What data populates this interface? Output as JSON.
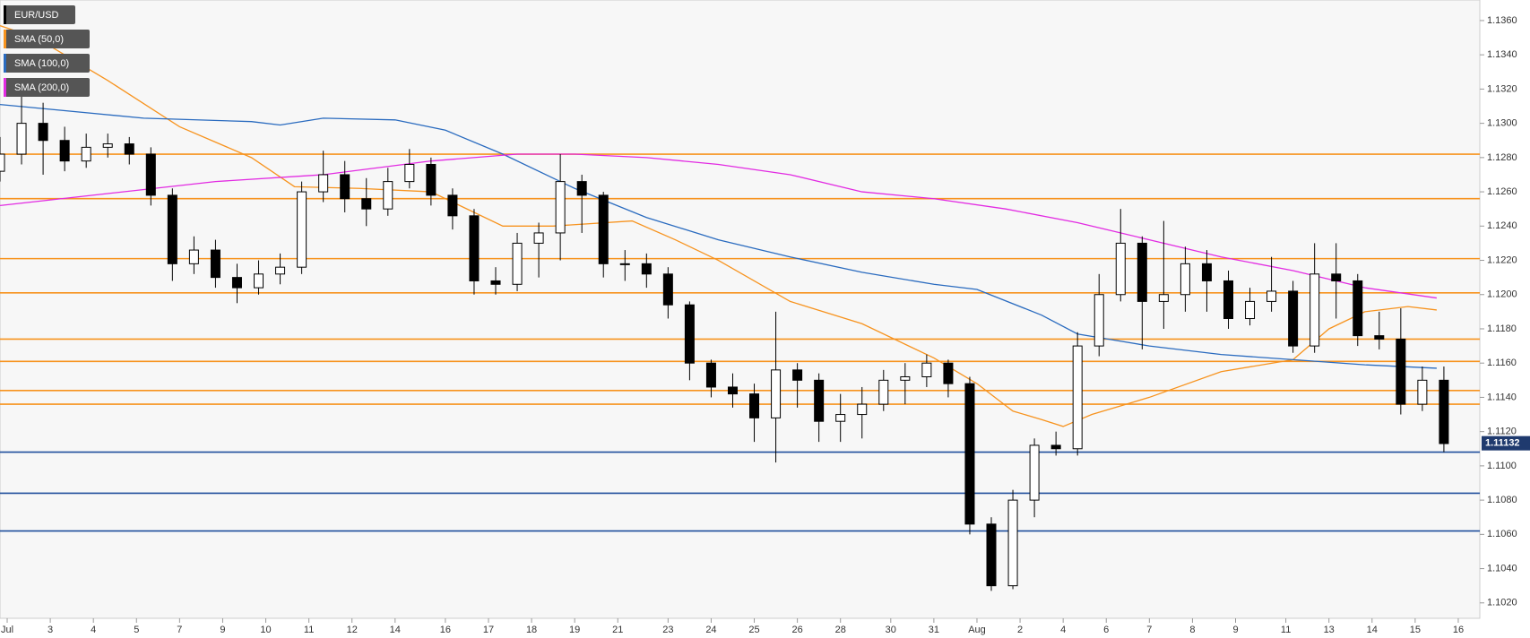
{
  "chart_data": {
    "type": "candlestick",
    "series": [
      {
        "name": "EUR/USD",
        "color": "#000000",
        "x": [
          0,
          3,
          6,
          9,
          12,
          15,
          18,
          21,
          24,
          27,
          30,
          33,
          36,
          39,
          42,
          45,
          48,
          51,
          54,
          57,
          60,
          63,
          66,
          69,
          72,
          75,
          78,
          81,
          84,
          87,
          90,
          93,
          96,
          99,
          102,
          105,
          108,
          111,
          114,
          117,
          120,
          123,
          126,
          129,
          132,
          135,
          138,
          141,
          144,
          147,
          150,
          153,
          156,
          159,
          162,
          165,
          168,
          171,
          174,
          177,
          180,
          183,
          186,
          189,
          192,
          195,
          198,
          201
        ],
        "open": [
          1.1272,
          1.1282,
          1.13,
          1.129,
          1.1278,
          1.1286,
          1.1288,
          1.1282,
          1.1258,
          1.1218,
          1.1226,
          1.121,
          1.1204,
          1.1212,
          1.1216,
          1.126,
          1.127,
          1.1256,
          1.125,
          1.1266,
          1.1276,
          1.1258,
          1.1246,
          1.1208,
          1.1206,
          1.123,
          1.1236,
          1.1266,
          1.1258,
          1.1218,
          1.1218,
          1.1212,
          1.1194,
          1.116,
          1.1146,
          1.1142,
          1.1128,
          1.1156,
          1.115,
          1.1126,
          1.113,
          1.1136,
          1.115,
          1.1152,
          1.116,
          1.1148,
          1.1066,
          1.103,
          1.108,
          1.1112,
          1.111,
          1.117,
          1.12,
          1.123,
          1.1196,
          1.12,
          1.1218,
          1.1208,
          1.1186,
          1.1196,
          1.1202,
          1.117,
          1.1212,
          1.1208,
          1.1176,
          1.1174,
          1.1136,
          1.115
        ],
        "high": [
          1.1292,
          1.132,
          1.1312,
          1.1298,
          1.1294,
          1.1294,
          1.1292,
          1.1286,
          1.1262,
          1.1234,
          1.1232,
          1.1218,
          1.122,
          1.1224,
          1.1266,
          1.1284,
          1.1278,
          1.1268,
          1.1274,
          1.1285,
          1.128,
          1.1262,
          1.125,
          1.1216,
          1.1236,
          1.1242,
          1.1282,
          1.127,
          1.126,
          1.1226,
          1.1224,
          1.1216,
          1.1196,
          1.1162,
          1.1154,
          1.1148,
          1.119,
          1.116,
          1.1154,
          1.1142,
          1.1146,
          1.1156,
          1.116,
          1.1165,
          1.1162,
          1.1152,
          1.107,
          1.1086,
          1.1116,
          1.112,
          1.1178,
          1.1212,
          1.125,
          1.1234,
          1.1243,
          1.1228,
          1.1226,
          1.1214,
          1.1204,
          1.1222,
          1.1208,
          1.123,
          1.123,
          1.1212,
          1.119,
          1.1192,
          1.1158,
          1.1158
        ],
        "low": [
          1.1266,
          1.1276,
          1.127,
          1.1272,
          1.1274,
          1.128,
          1.1276,
          1.1252,
          1.1208,
          1.1212,
          1.1204,
          1.1195,
          1.12,
          1.1206,
          1.1212,
          1.1254,
          1.1248,
          1.124,
          1.1246,
          1.1262,
          1.1252,
          1.1238,
          1.12,
          1.12,
          1.1202,
          1.121,
          1.122,
          1.1236,
          1.121,
          1.1208,
          1.1204,
          1.1186,
          1.115,
          1.114,
          1.1134,
          1.1114,
          1.1102,
          1.1134,
          1.1114,
          1.1114,
          1.1116,
          1.1132,
          1.1136,
          1.1146,
          1.114,
          1.106,
          1.1027,
          1.1028,
          1.107,
          1.1106,
          1.1106,
          1.1164,
          1.1196,
          1.1168,
          1.118,
          1.119,
          1.119,
          1.118,
          1.1182,
          1.119,
          1.1166,
          1.1166,
          1.1186,
          1.117,
          1.1168,
          1.113,
          1.1132,
          1.1108
        ],
        "close": [
          1.1282,
          1.13,
          1.129,
          1.1278,
          1.1286,
          1.1288,
          1.1282,
          1.1258,
          1.1218,
          1.1226,
          1.121,
          1.1204,
          1.1212,
          1.1216,
          1.126,
          1.127,
          1.1256,
          1.125,
          1.1266,
          1.1276,
          1.1258,
          1.1246,
          1.1208,
          1.1206,
          1.123,
          1.1236,
          1.1266,
          1.1258,
          1.1218,
          1.1218,
          1.1212,
          1.1194,
          1.116,
          1.1146,
          1.1142,
          1.1128,
          1.1156,
          1.115,
          1.1126,
          1.113,
          1.1136,
          1.115,
          1.1152,
          1.116,
          1.1148,
          1.1066,
          1.103,
          1.108,
          1.1112,
          1.111,
          1.117,
          1.12,
          1.123,
          1.1196,
          1.12,
          1.1218,
          1.1208,
          1.1186,
          1.1196,
          1.1202,
          1.117,
          1.1212,
          1.1208,
          1.1176,
          1.1174,
          1.1136,
          1.115,
          1.1113
        ]
      },
      {
        "name": "SMA (50,0)",
        "color": "#f7931e",
        "x": [
          0,
          5,
          15,
          25,
          35,
          41,
          50,
          60,
          70,
          77,
          88,
          94,
          100,
          110,
          120,
          130,
          136,
          141,
          145,
          148,
          152,
          160,
          170,
          180,
          185,
          190,
          196,
          200
        ],
        "values": [
          1.1357,
          1.135,
          1.1325,
          1.1298,
          1.128,
          1.1263,
          1.1262,
          1.126,
          1.124,
          1.124,
          1.1243,
          1.1232,
          1.122,
          1.1196,
          1.1183,
          1.1163,
          1.1148,
          1.1132,
          1.1127,
          1.1123,
          1.113,
          1.114,
          1.1155,
          1.1162,
          1.118,
          1.119,
          1.1193,
          1.1191
        ]
      },
      {
        "name": "SMA (100,0)",
        "color": "#2a6bbf",
        "x": [
          0,
          20,
          35,
          39,
          45,
          55,
          62,
          70,
          80,
          90,
          100,
          110,
          120,
          130,
          136,
          145,
          150,
          160,
          170,
          180,
          190,
          200
        ],
        "values": [
          1.1311,
          1.1303,
          1.1301,
          1.1299,
          1.1303,
          1.1302,
          1.1296,
          1.1282,
          1.1262,
          1.1245,
          1.1232,
          1.1222,
          1.1213,
          1.1206,
          1.1203,
          1.1188,
          1.1177,
          1.117,
          1.1165,
          1.1162,
          1.1159,
          1.1157
        ]
      },
      {
        "name": "SMA (200,0)",
        "color": "#e22be2",
        "x": [
          0,
          15,
          30,
          45,
          60,
          72,
          80,
          90,
          100,
          110,
          120,
          130,
          140,
          150,
          160,
          170,
          180,
          190,
          200
        ],
        "values": [
          1.1252,
          1.1259,
          1.1266,
          1.127,
          1.1278,
          1.1282,
          1.1282,
          1.128,
          1.1276,
          1.127,
          1.126,
          1.1256,
          1.125,
          1.1242,
          1.1232,
          1.1222,
          1.1214,
          1.1204,
          1.1198
        ]
      }
    ],
    "hlines": [
      {
        "value": 1.1282,
        "color": "#f7931e"
      },
      {
        "value": 1.1256,
        "color": "#f7931e"
      },
      {
        "value": 1.1221,
        "color": "#f7931e"
      },
      {
        "value": 1.1201,
        "color": "#f7931e"
      },
      {
        "value": 1.1174,
        "color": "#f7931e"
      },
      {
        "value": 1.1161,
        "color": "#f7931e"
      },
      {
        "value": 1.1144,
        "color": "#f7931e"
      },
      {
        "value": 1.1136,
        "color": "#f7931e"
      },
      {
        "value": 1.1108,
        "color": "#1f4e9c"
      },
      {
        "value": 1.1084,
        "color": "#1f4e9c"
      },
      {
        "value": 1.1062,
        "color": "#1f4e9c"
      }
    ],
    "last_price": {
      "value": 1.11132,
      "label": "1.11132"
    },
    "xlim": [
      0,
      206
    ],
    "xticks": [
      {
        "value": 1,
        "label": "Jul"
      },
      {
        "value": 7,
        "label": "3"
      },
      {
        "value": 13,
        "label": "4"
      },
      {
        "value": 19,
        "label": "5"
      },
      {
        "value": 25,
        "label": "7"
      },
      {
        "value": 31,
        "label": "9"
      },
      {
        "value": 37,
        "label": "10"
      },
      {
        "value": 43,
        "label": "11"
      },
      {
        "value": 49,
        "label": "12"
      },
      {
        "value": 55,
        "label": "14"
      },
      {
        "value": 62,
        "label": "16"
      },
      {
        "value": 68,
        "label": "17"
      },
      {
        "value": 74,
        "label": "18"
      },
      {
        "value": 80,
        "label": "19"
      },
      {
        "value": 86,
        "label": "21"
      },
      {
        "value": 93,
        "label": "23"
      },
      {
        "value": 99,
        "label": "24"
      },
      {
        "value": 105,
        "label": "25"
      },
      {
        "value": 111,
        "label": "26"
      },
      {
        "value": 117,
        "label": "28"
      },
      {
        "value": 124,
        "label": "30"
      },
      {
        "value": 130,
        "label": "31"
      },
      {
        "value": 136,
        "label": "Aug"
      },
      {
        "value": 142,
        "label": "2"
      },
      {
        "value": 148,
        "label": "4"
      },
      {
        "value": 154,
        "label": "6"
      },
      {
        "value": 160,
        "label": "7"
      },
      {
        "value": 166,
        "label": "8"
      },
      {
        "value": 172,
        "label": "9"
      },
      {
        "value": 179,
        "label": "11"
      },
      {
        "value": 185,
        "label": "13"
      },
      {
        "value": 191,
        "label": "14"
      },
      {
        "value": 197,
        "label": "15"
      },
      {
        "value": 203,
        "label": "16"
      }
    ],
    "ylim": [
      1.1011,
      1.1372
    ],
    "yticks": [
      {
        "value": 1.102,
        "label": "1.1020"
      },
      {
        "value": 1.104,
        "label": "1.1040"
      },
      {
        "value": 1.106,
        "label": "1.1060"
      },
      {
        "value": 1.108,
        "label": "1.1080"
      },
      {
        "value": 1.11,
        "label": "1.1100"
      },
      {
        "value": 1.112,
        "label": "1.1120"
      },
      {
        "value": 1.114,
        "label": "1.1140"
      },
      {
        "value": 1.116,
        "label": "1.1160"
      },
      {
        "value": 1.118,
        "label": "1.1180"
      },
      {
        "value": 1.12,
        "label": "1.1200"
      },
      {
        "value": 1.122,
        "label": "1.1220"
      },
      {
        "value": 1.124,
        "label": "1.1240"
      },
      {
        "value": 1.126,
        "label": "1.1260"
      },
      {
        "value": 1.128,
        "label": "1.1280"
      },
      {
        "value": 1.13,
        "label": "1.1300"
      },
      {
        "value": 1.132,
        "label": "1.1320"
      },
      {
        "value": 1.134,
        "label": "1.1340"
      },
      {
        "value": 1.136,
        "label": "1.1360"
      }
    ]
  }
}
